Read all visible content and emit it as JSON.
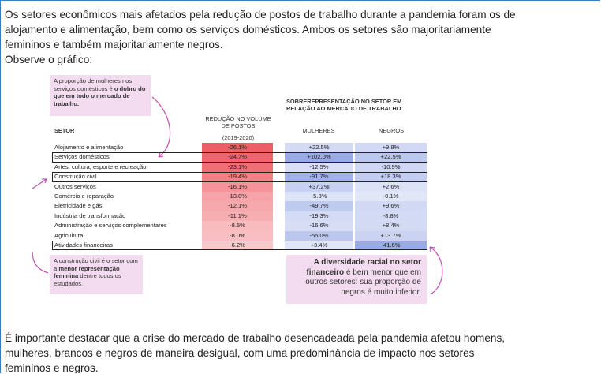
{
  "intro": {
    "lines": [
      "Os setores econômicos mais afetados pela redução de postos de trabalho durante a pandemia foram os de",
      "alojamento e alimentação, bem como os serviços domésticos. Ambos os setores são majoritariamente",
      "femininos e também majoritariamente negros.",
      "Observe o gráfico:"
    ]
  },
  "figure": {
    "headers": {
      "sector": "SETOR",
      "reduction": "REDUÇÃO NO VOLUME DE POSTOS",
      "reduction_period": "(2019-2020)",
      "overrep": "SOBREREPRESENTAÇÃO NO SETOR EM RELAÇÃO AO MERCADO DE TRABALHO",
      "women": "MULHERES",
      "black": "NEGROS"
    },
    "rows": [
      [
        "Alojamento e alimentação",
        "-26.1%",
        "+22.5%",
        "+9.8%"
      ],
      [
        "Serviços domésticos",
        "-24.7%",
        "+102.0%",
        "+22.5%"
      ],
      [
        "Artes, cultura, esporte e recreação",
        "-23.1%",
        "-12.5%",
        "-10.9%"
      ],
      [
        "Construção civil",
        "-19.4%",
        "-91.7%",
        "+18.3%"
      ],
      [
        "Outros serviços",
        "-16.1%",
        "+37.2%",
        "+2.6%"
      ],
      [
        "Comércio e reparação",
        "-13.0%",
        "-5.3%",
        "-0.1%"
      ],
      [
        "Eletricidade e gás",
        "-12.1%",
        "-49.7%",
        "+9.6%"
      ],
      [
        "Indústria de transformação",
        "-11.1%",
        "-19.3%",
        "-8.8%"
      ],
      [
        "Administração e serviços complementares",
        "-8.5%",
        "-16.6%",
        "+8.4%"
      ],
      [
        "Agricultura",
        "-8.0%",
        "-55.0%",
        "+13.7%"
      ],
      [
        "Atividades financeiras",
        "-6.2%",
        "+3.4%",
        "-41.6%"
      ]
    ],
    "callouts": {
      "domestic": {
        "text": "A proporção de mulheres nos serviços domésticos é ",
        "bold": "o dobro do que em todo o mercado de trabalho."
      },
      "construction": {
        "text": "A construção civil é o setor com a ",
        "bold": "menor representação feminina",
        "text_end": " dentre todos os estudados."
      },
      "finance": {
        "bold": "A diversidade racial no setor financeiro",
        "text": " é bem menor que em outros setores: sua proporção de negros é muito inferior."
      }
    }
  },
  "conclusion": {
    "lines": [
      "É importante destacar que a crise do mercado de trabalho desencadeada pela pandemia afetou homens,",
      "mulheres, brancos e negros de maneira desigual, com uma predominância de impacto nos setores",
      "femininos e negros."
    ]
  }
}
